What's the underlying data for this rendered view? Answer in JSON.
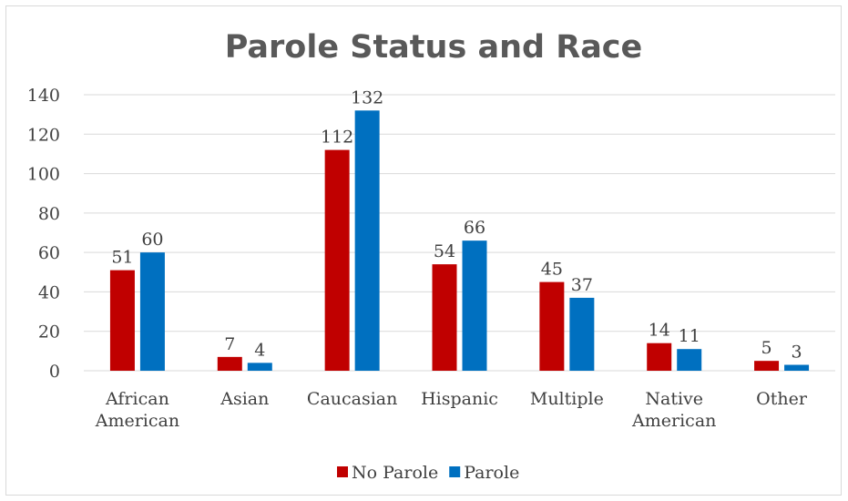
{
  "chart_data": {
    "type": "bar",
    "title": "Parole Status and Race",
    "categories": [
      [
        "African",
        "American"
      ],
      [
        "Asian"
      ],
      [
        "Caucasian"
      ],
      [
        "Hispanic"
      ],
      [
        "Multiple"
      ],
      [
        "Native",
        "American"
      ],
      [
        "Other"
      ]
    ],
    "series": [
      {
        "name": "No Parole",
        "color": "#c00000",
        "values": [
          51,
          7,
          112,
          54,
          45,
          14,
          5
        ]
      },
      {
        "name": "Parole",
        "color": "#0070c0",
        "values": [
          60,
          4,
          132,
          66,
          37,
          11,
          3
        ]
      }
    ],
    "ylim": [
      0,
      140
    ],
    "yticks": [
      0,
      20,
      40,
      60,
      80,
      100,
      120,
      140
    ],
    "grid": true,
    "legend_position": "bottom",
    "data_labels": true
  }
}
